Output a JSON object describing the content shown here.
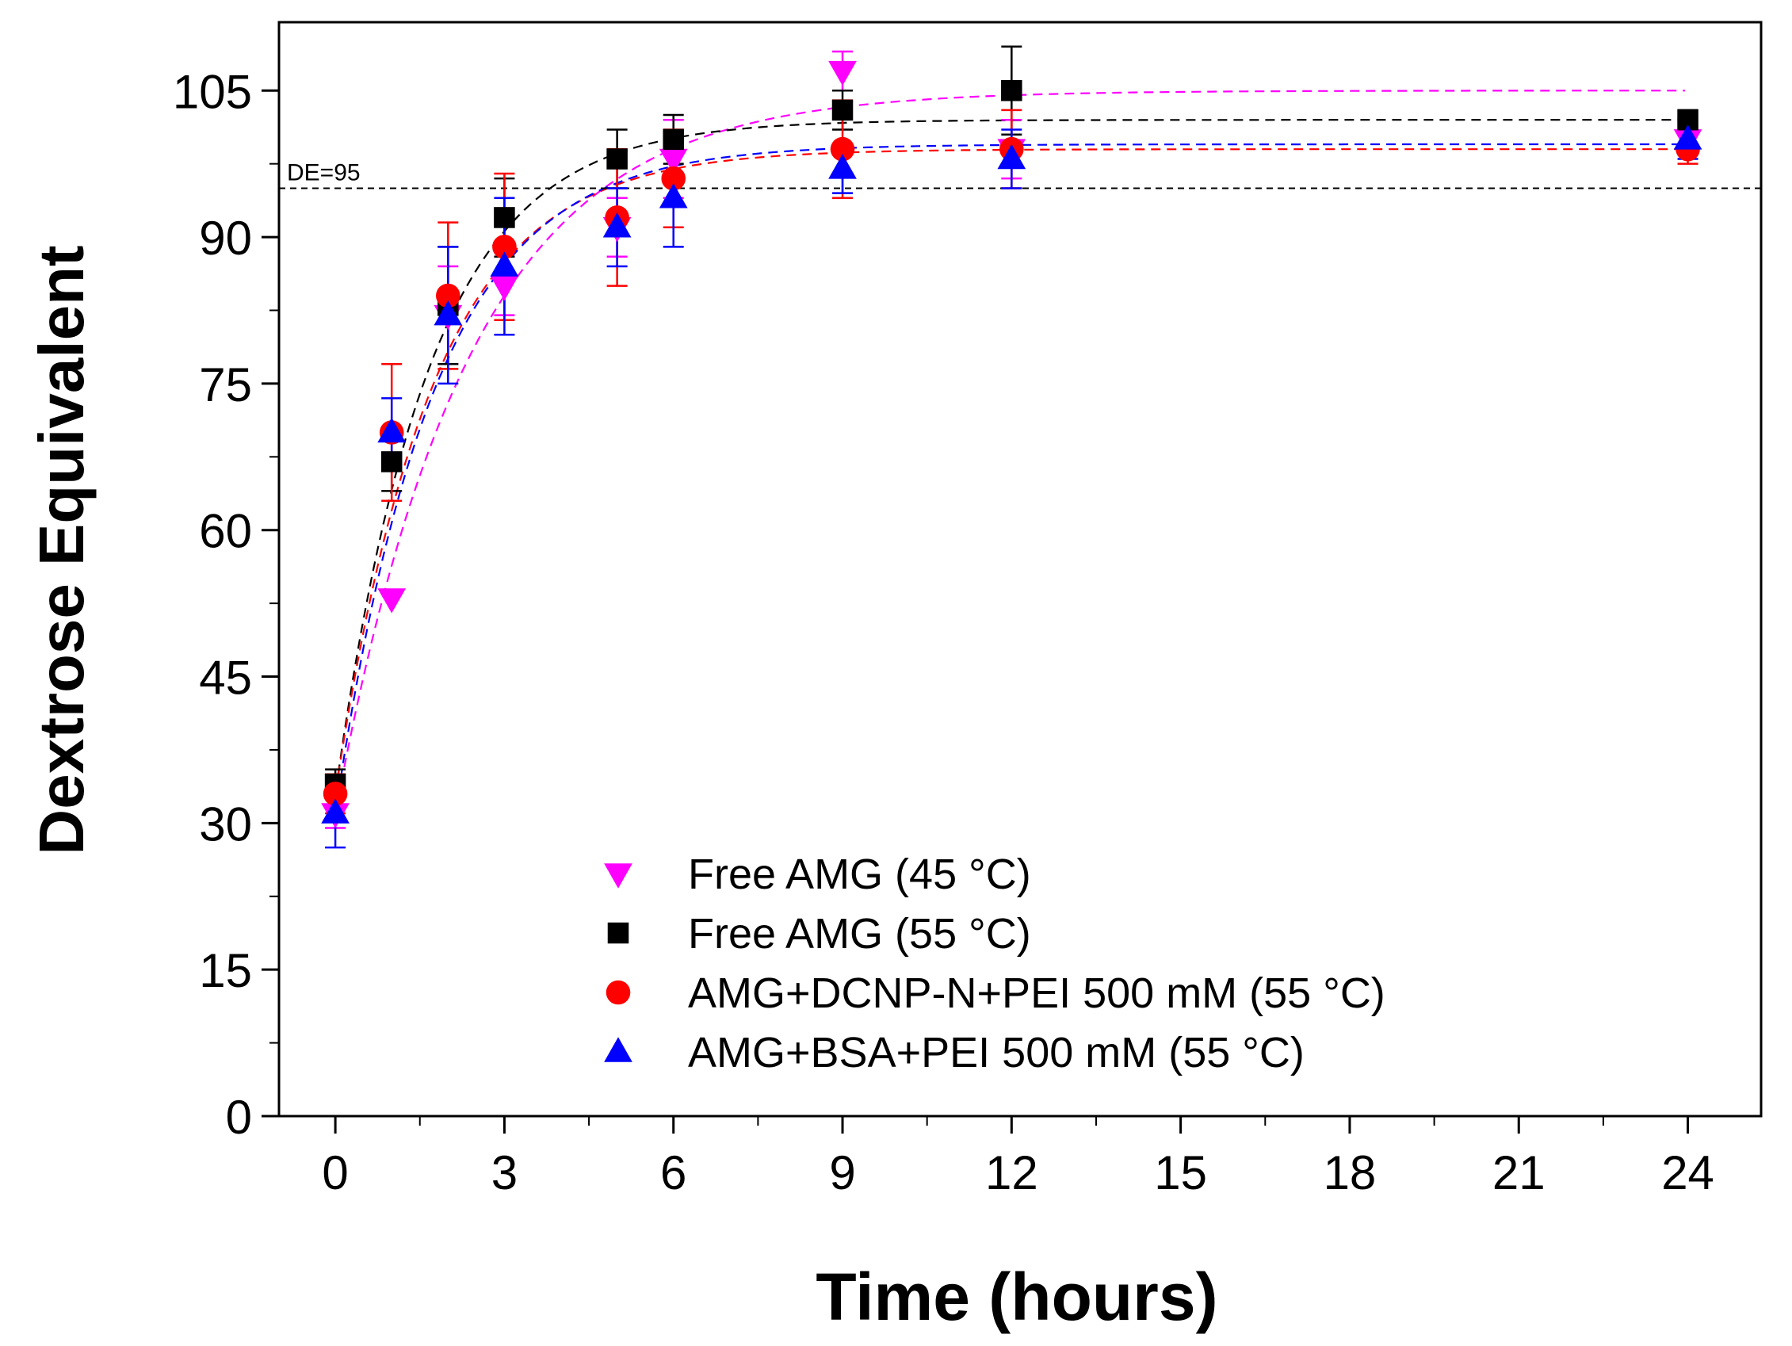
{
  "chart_data": {
    "type": "scatter",
    "title": "",
    "xlabel": "Time (hours)",
    "ylabel": "Dextrose Equivalent",
    "xlim": [
      -1,
      25.3
    ],
    "ylim": [
      0,
      112
    ],
    "xticks": [
      0,
      3,
      6,
      9,
      12,
      15,
      18,
      21,
      24
    ],
    "yticks": [
      0,
      15,
      30,
      45,
      60,
      75,
      90,
      105
    ],
    "grid": false,
    "legend_position": "bottom-center",
    "reference_line": {
      "y": 95,
      "label": "DE=95",
      "color": "#000000"
    },
    "series": [
      {
        "name": "Free AMG (45 °C)",
        "color": "#ff00ff",
        "marker": "triangle-down",
        "x": [
          0,
          1,
          2,
          3,
          5,
          6,
          9,
          12,
          24
        ],
        "y": [
          31,
          53,
          82,
          85,
          91,
          98,
          107,
          99,
          100
        ],
        "err": [
          1.5,
          0,
          5,
          3,
          3,
          4,
          2,
          3,
          1.5
        ],
        "fit": {
          "a": 31,
          "b": 105,
          "k": 0.42
        }
      },
      {
        "name": "Free AMG (55 °C)",
        "color": "#000000",
        "marker": "square",
        "x": [
          0,
          1,
          2,
          3,
          5,
          6,
          9,
          12,
          24
        ],
        "y": [
          34,
          67,
          83,
          92,
          98,
          100,
          103,
          105,
          102
        ],
        "err": [
          1.5,
          3,
          6,
          4,
          3,
          2.5,
          2,
          4.5,
          1
        ],
        "fit": {
          "a": 33,
          "b": 102,
          "k": 0.6
        }
      },
      {
        "name": "AMG+DCNP-N+PEI 500 mM (55 °C)",
        "color": "#ff0000",
        "marker": "circle",
        "x": [
          0,
          1,
          2,
          3,
          5,
          6,
          9,
          12,
          24
        ],
        "y": [
          33,
          70,
          84,
          89,
          92,
          96,
          99,
          99,
          99
        ],
        "err": [
          2,
          7,
          7.5,
          7.5,
          7,
          5,
          5,
          4,
          1.5
        ],
        "fit": {
          "a": 33,
          "b": 99,
          "k": 0.58
        }
      },
      {
        "name": "AMG+BSA+PEI 500 mM (55 °C)",
        "color": "#0000ff",
        "marker": "triangle-up",
        "x": [
          0,
          1,
          2,
          3,
          5,
          6,
          9,
          12,
          24
        ],
        "y": [
          31,
          70,
          82,
          87,
          91,
          94,
          97,
          98,
          100
        ],
        "err": [
          3.5,
          3.5,
          7,
          7,
          4,
          5,
          2.5,
          3,
          2
        ],
        "fit": {
          "a": 31,
          "b": 99.5,
          "k": 0.57
        }
      }
    ]
  }
}
